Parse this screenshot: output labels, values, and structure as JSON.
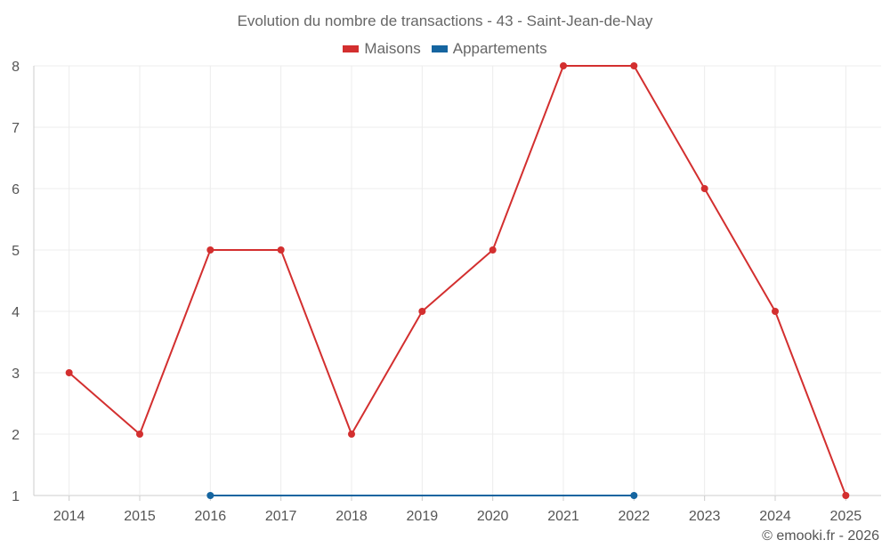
{
  "chart_data": {
    "type": "line",
    "title": "Evolution du nombre de transactions - 43 - Saint-Jean-de-Nay",
    "categories": [
      "2014",
      "2015",
      "2016",
      "2017",
      "2018",
      "2019",
      "2020",
      "2021",
      "2022",
      "2023",
      "2024",
      "2025"
    ],
    "ylim": [
      1,
      8
    ],
    "yticks": [
      1,
      2,
      3,
      4,
      5,
      6,
      7,
      8
    ],
    "grid": true,
    "legend_position": "top-center",
    "series": [
      {
        "name": "Maisons",
        "color": "#d32f2f",
        "values": [
          3,
          2,
          5,
          5,
          2,
          4,
          5,
          8,
          8,
          6,
          4,
          1
        ]
      },
      {
        "name": "Appartements",
        "color": "#1565a0",
        "values": [
          null,
          null,
          1,
          null,
          null,
          null,
          null,
          null,
          1,
          null,
          null,
          null
        ]
      }
    ]
  },
  "credit": "© emooki.fr - 2026"
}
